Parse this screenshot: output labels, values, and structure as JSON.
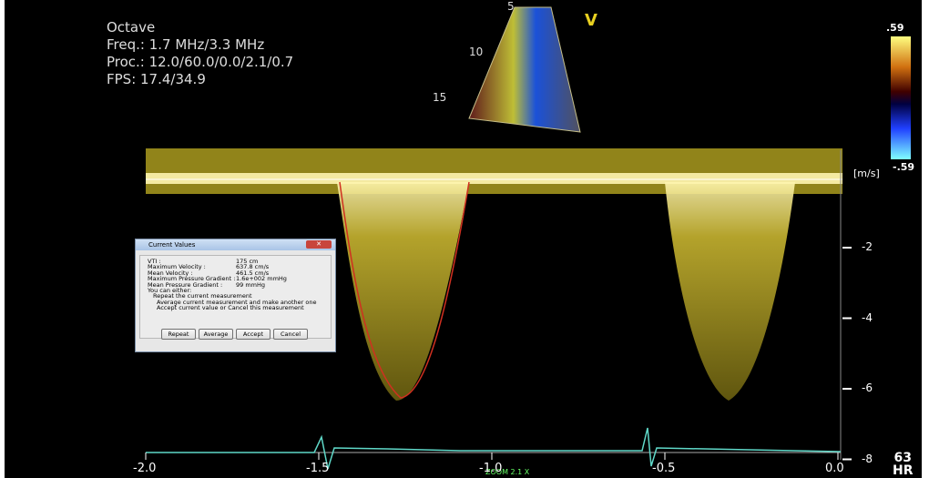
{
  "header": {
    "mode": "Octave",
    "freq": "Freq.: 1.7 MHz/3.3 MHz",
    "proc": "Proc.: 12.0/60.0/0.0/2.1/0.7",
    "fps": "FPS: 17.4/34.9"
  },
  "sector": {
    "marker": "V",
    "depths": [
      "5",
      "10",
      "15"
    ]
  },
  "color_bar": {
    "top": ".59",
    "bottom": "-.59"
  },
  "spectrum": {
    "unit": "[m/s]",
    "y_ticks": [
      "-2",
      "-4",
      "-6",
      "-8"
    ],
    "x_ticks": [
      "-2.0",
      "-1.5",
      "-1.0",
      "-0.5",
      "0.0"
    ],
    "zoom": "ZOOM 2.1 X",
    "hr_value": "63",
    "hr_label": "HR"
  },
  "dialog": {
    "title": "Current Values",
    "rows": [
      [
        "VTI :",
        "175 cm"
      ],
      [
        "Maximum Velocity :",
        "637.8 cm/s"
      ],
      [
        "Mean Velocity :",
        "461.5 cm/s"
      ],
      [
        "Maximum Pressure Gradient :",
        "1.6e+002 mmHg"
      ],
      [
        "Mean Pressure Gradient :",
        "99 mmHg"
      ]
    ],
    "prompt": "You can either:",
    "options": [
      "Repeat the current measurement",
      "Average current measurement and make another one",
      "Accept current value or Cancel this measurement"
    ],
    "buttons": [
      "Repeat",
      "Average",
      "Accept",
      "Cancel"
    ]
  }
}
